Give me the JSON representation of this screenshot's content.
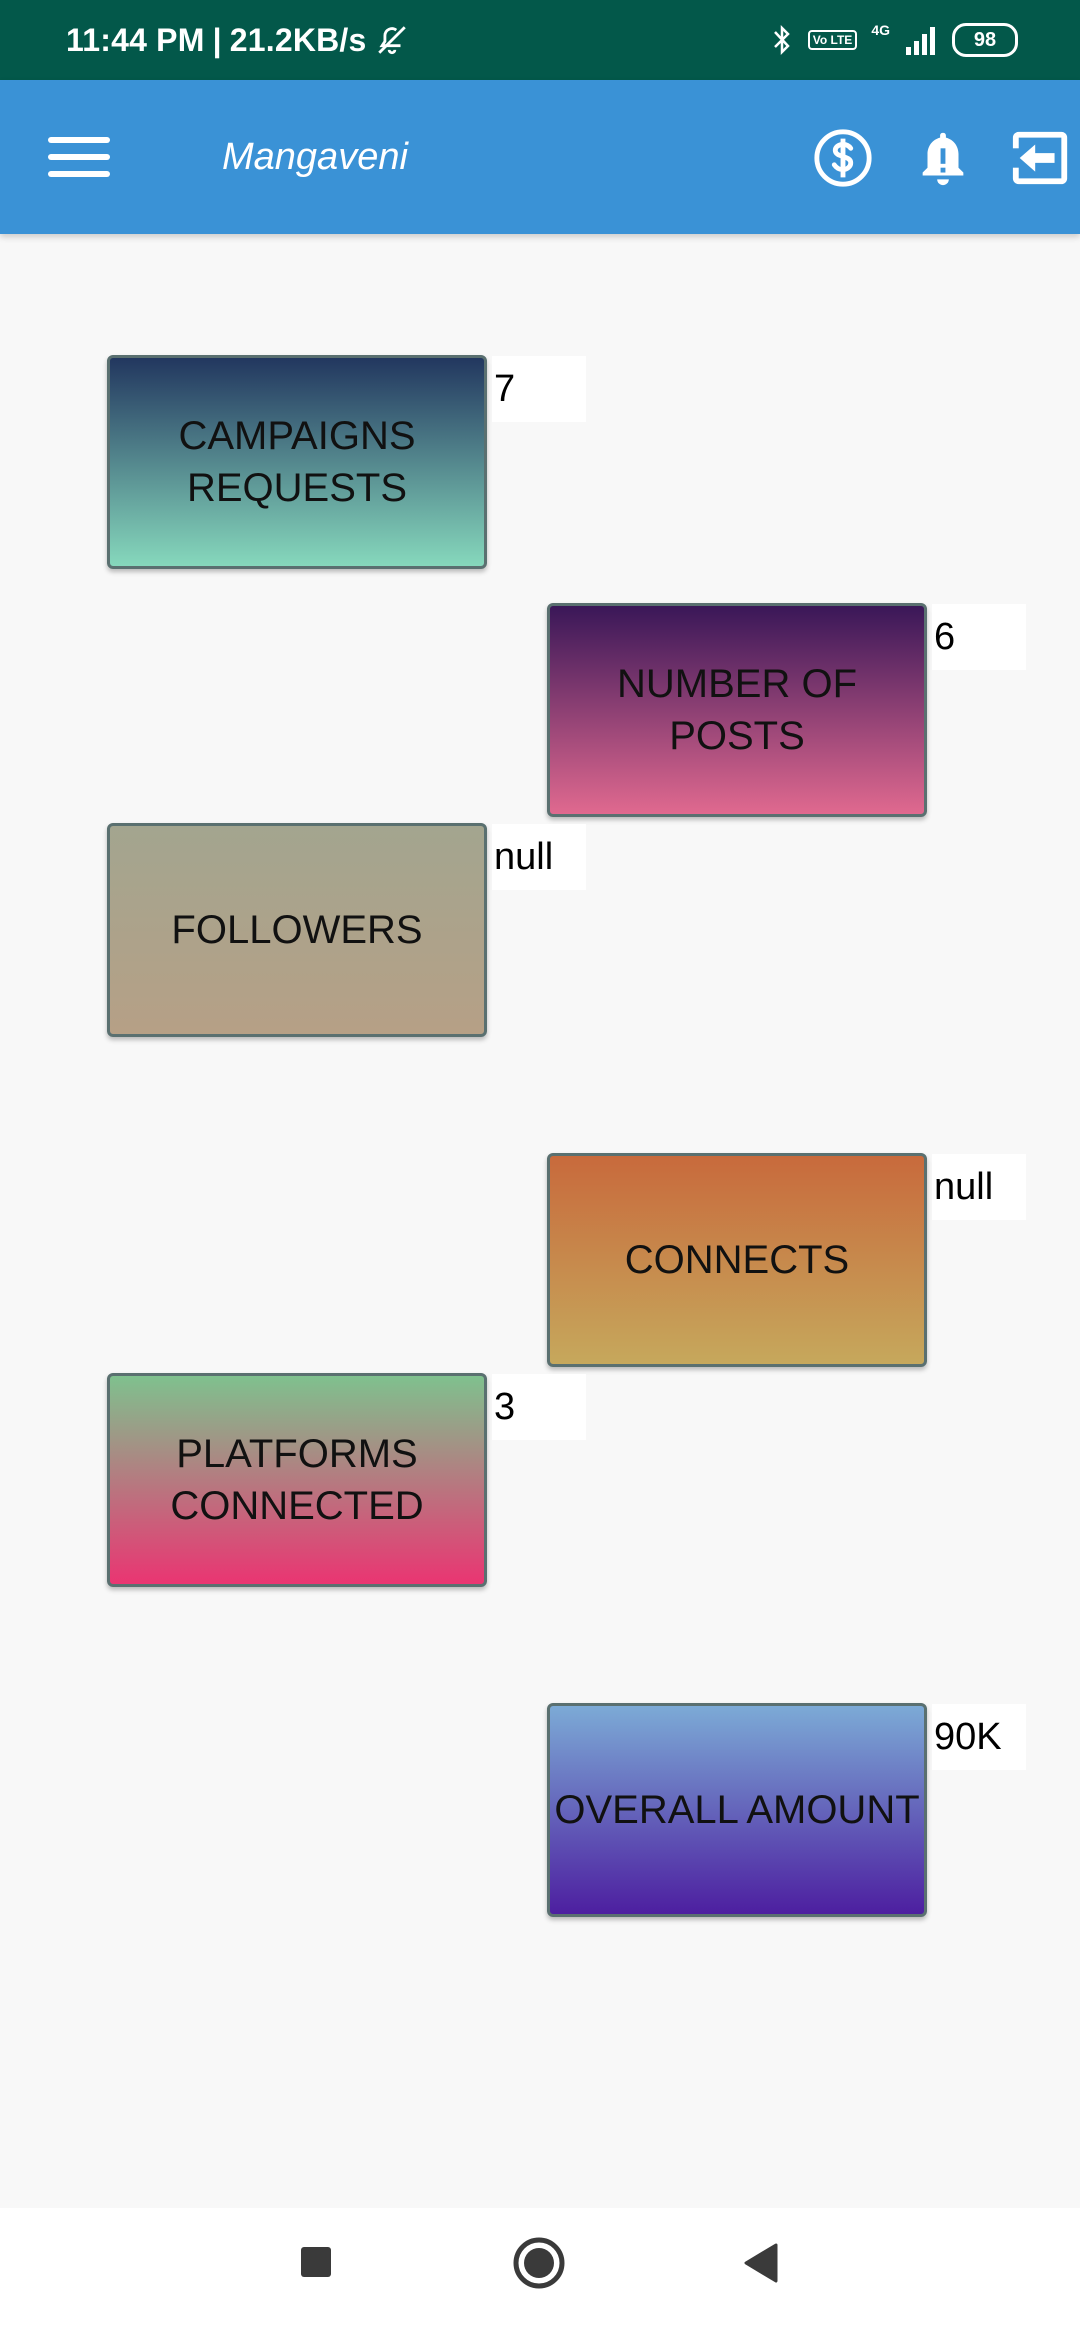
{
  "status_bar": {
    "time": "11:44 PM",
    "separator": "|",
    "net_speed": "21.2KB/s",
    "volte_label": "Vo LTE",
    "network_label": "4G",
    "battery": "98"
  },
  "app_bar": {
    "title": "Mangaveni",
    "icons": [
      "menu-icon",
      "dollar-icon",
      "bell-alert-icon",
      "logout-icon"
    ]
  },
  "tiles": [
    {
      "label": "CAMPAIGNS\nREQUESTS",
      "value": "7"
    },
    {
      "label": "NUMBER OF\nPOSTS",
      "value": "6"
    },
    {
      "label": "FOLLOWERS",
      "value": "null"
    },
    {
      "label": "CONNECTS",
      "value": "null"
    },
    {
      "label": "PLATFORMS\nCONNECTED",
      "value": "3"
    },
    {
      "label": "OVERALL AMOUNT",
      "value": "90K"
    }
  ],
  "nav_bar": {
    "icons": [
      "recents-square-icon",
      "home-circle-icon",
      "back-triangle-icon"
    ]
  }
}
